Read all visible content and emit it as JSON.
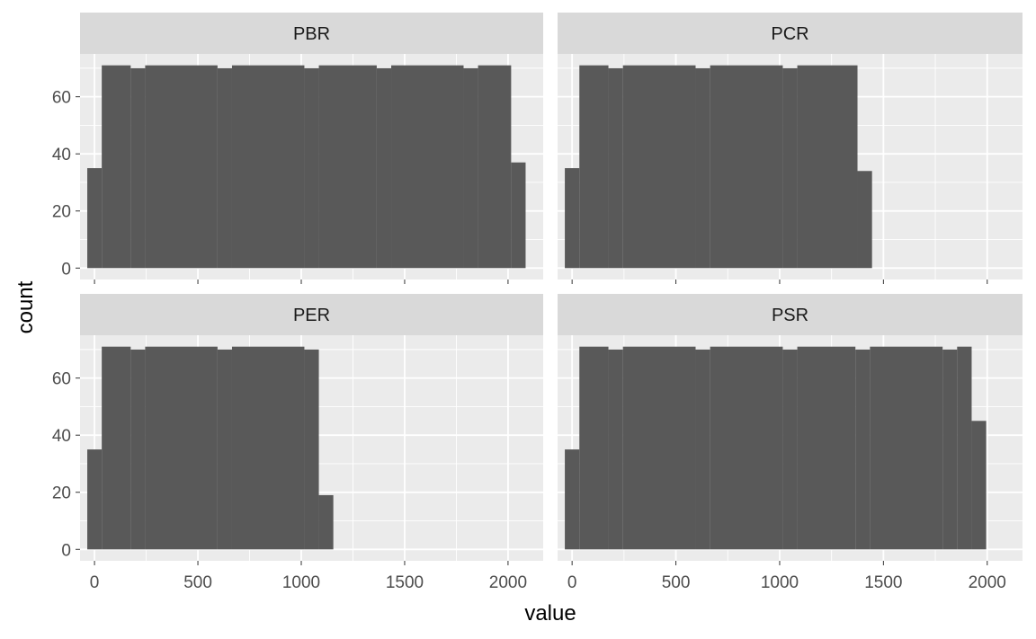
{
  "chart_data": {
    "type": "bar",
    "subtype": "faceted-histogram",
    "xlabel": "value",
    "ylabel": "count",
    "xlim": [
      -70,
      2170
    ],
    "ylim": [
      -4,
      75
    ],
    "x_ticks": [
      0,
      500,
      1000,
      1500,
      2000
    ],
    "x_tick_labels": [
      "0",
      "500",
      "1000",
      "1500",
      "2000"
    ],
    "y_ticks": [
      0,
      20,
      40,
      60
    ],
    "y_tick_labels": [
      "0",
      "20",
      "40",
      "60"
    ],
    "grid": true,
    "colors": {
      "panel_bg": "#ebebeb",
      "strip_bg": "#d9d9d9",
      "grid": "#ffffff",
      "bar_fill": "#595959",
      "tick_text": "#4d4d4d",
      "strip_text": "#1a1a1a"
    },
    "facets": [
      {
        "name": "PBR",
        "bins": [
          {
            "x0": -35,
            "x1": 35,
            "count": 35
          },
          {
            "x0": 35,
            "x1": 175,
            "count": 71
          },
          {
            "x0": 175,
            "x1": 245,
            "count": 70
          },
          {
            "x0": 245,
            "x1": 595,
            "count": 71
          },
          {
            "x0": 595,
            "x1": 665,
            "count": 70
          },
          {
            "x0": 665,
            "x1": 1015,
            "count": 71
          },
          {
            "x0": 1015,
            "x1": 1085,
            "count": 70
          },
          {
            "x0": 1085,
            "x1": 1365,
            "count": 71
          },
          {
            "x0": 1365,
            "x1": 1435,
            "count": 70
          },
          {
            "x0": 1435,
            "x1": 1785,
            "count": 71
          },
          {
            "x0": 1785,
            "x1": 1855,
            "count": 70
          },
          {
            "x0": 1855,
            "x1": 2015,
            "count": 71
          },
          {
            "x0": 2015,
            "x1": 2085,
            "count": 37
          }
        ]
      },
      {
        "name": "PCR",
        "bins": [
          {
            "x0": -35,
            "x1": 35,
            "count": 35
          },
          {
            "x0": 35,
            "x1": 175,
            "count": 71
          },
          {
            "x0": 175,
            "x1": 245,
            "count": 70
          },
          {
            "x0": 245,
            "x1": 595,
            "count": 71
          },
          {
            "x0": 595,
            "x1": 665,
            "count": 70
          },
          {
            "x0": 665,
            "x1": 1015,
            "count": 71
          },
          {
            "x0": 1015,
            "x1": 1085,
            "count": 70
          },
          {
            "x0": 1085,
            "x1": 1375,
            "count": 71
          },
          {
            "x0": 1375,
            "x1": 1445,
            "count": 34
          }
        ]
      },
      {
        "name": "PER",
        "bins": [
          {
            "x0": -35,
            "x1": 35,
            "count": 35
          },
          {
            "x0": 35,
            "x1": 175,
            "count": 71
          },
          {
            "x0": 175,
            "x1": 245,
            "count": 70
          },
          {
            "x0": 245,
            "x1": 595,
            "count": 71
          },
          {
            "x0": 595,
            "x1": 665,
            "count": 70
          },
          {
            "x0": 665,
            "x1": 1015,
            "count": 71
          },
          {
            "x0": 1015,
            "x1": 1085,
            "count": 70
          },
          {
            "x0": 1085,
            "x1": 1155,
            "count": 19
          }
        ]
      },
      {
        "name": "PSR",
        "bins": [
          {
            "x0": -35,
            "x1": 35,
            "count": 35
          },
          {
            "x0": 35,
            "x1": 175,
            "count": 71
          },
          {
            "x0": 175,
            "x1": 245,
            "count": 70
          },
          {
            "x0": 245,
            "x1": 595,
            "count": 71
          },
          {
            "x0": 595,
            "x1": 665,
            "count": 70
          },
          {
            "x0": 665,
            "x1": 1015,
            "count": 71
          },
          {
            "x0": 1015,
            "x1": 1085,
            "count": 70
          },
          {
            "x0": 1085,
            "x1": 1365,
            "count": 71
          },
          {
            "x0": 1365,
            "x1": 1435,
            "count": 70
          },
          {
            "x0": 1435,
            "x1": 1785,
            "count": 71
          },
          {
            "x0": 1785,
            "x1": 1855,
            "count": 70
          },
          {
            "x0": 1855,
            "x1": 1925,
            "count": 71
          },
          {
            "x0": 1925,
            "x1": 1995,
            "count": 45
          }
        ]
      }
    ]
  }
}
